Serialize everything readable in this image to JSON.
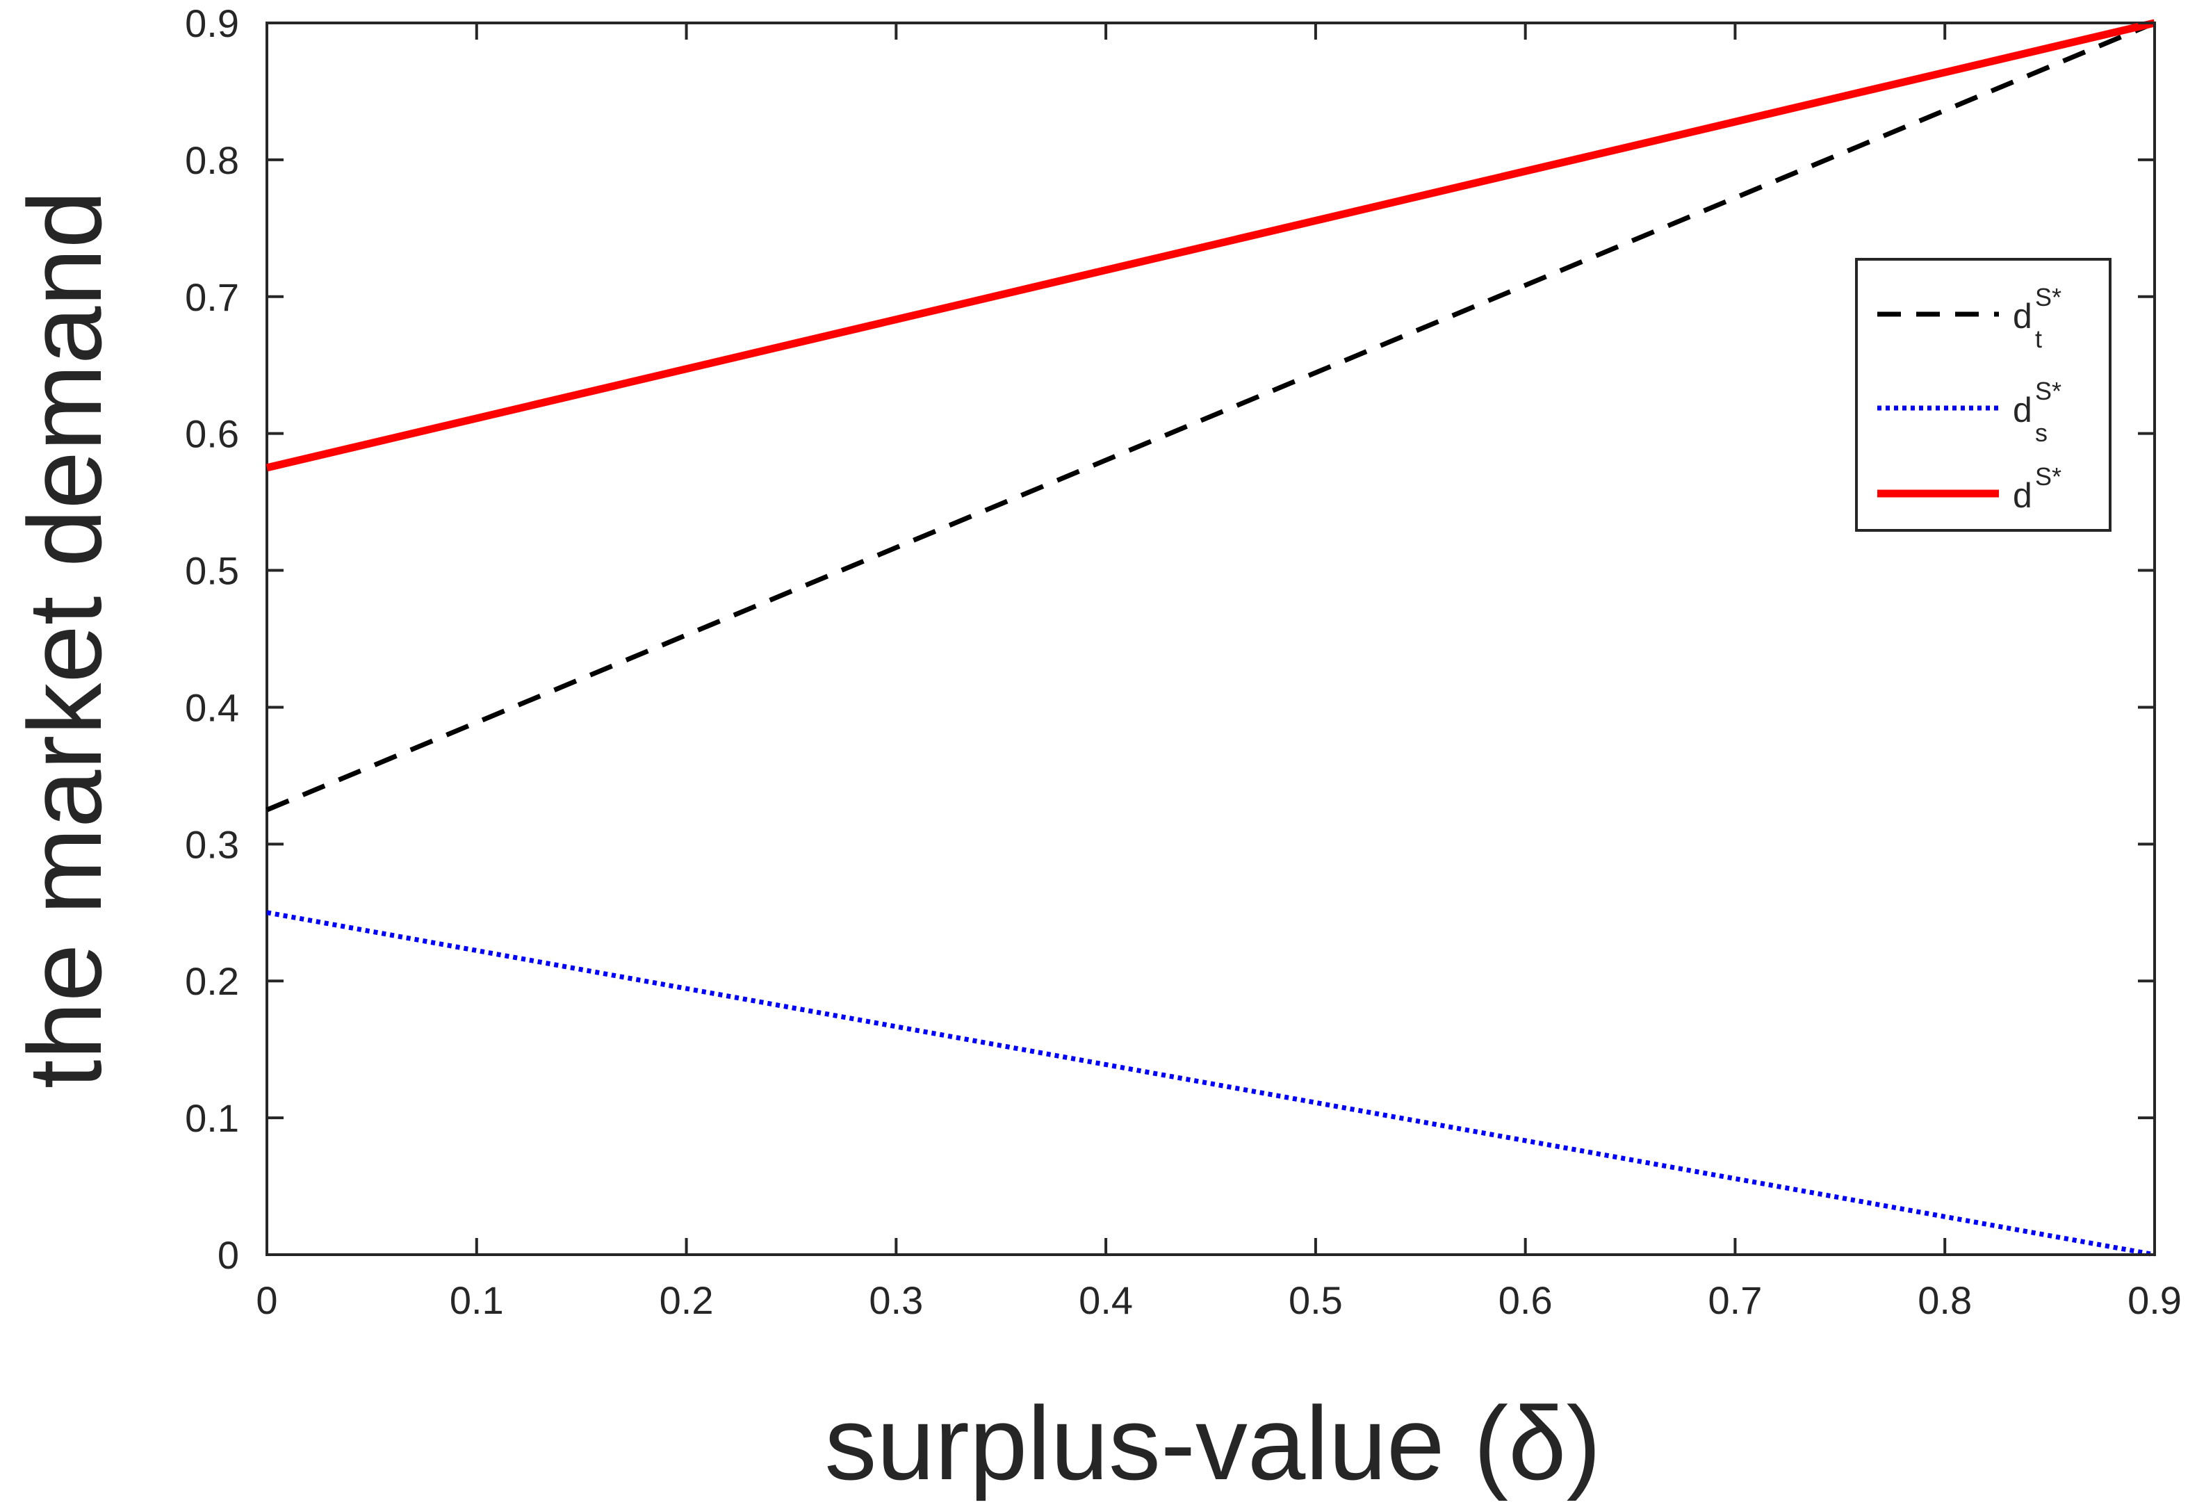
{
  "chart_data": {
    "type": "line",
    "xlabel": "surplus-value (δ)",
    "ylabel": "the market demand",
    "xlim": [
      0,
      0.9
    ],
    "ylim": [
      0,
      0.9
    ],
    "xticks": [
      "0",
      "0.1",
      "0.2",
      "0.3",
      "0.4",
      "0.5",
      "0.6",
      "0.7",
      "0.8",
      "0.9"
    ],
    "yticks": [
      "0",
      "0.1",
      "0.2",
      "0.3",
      "0.4",
      "0.5",
      "0.6",
      "0.7",
      "0.8",
      "0.9"
    ],
    "grid": false,
    "legend_position": "right",
    "series": [
      {
        "name": "d_t^{S*}",
        "label_base": "d",
        "label_sub": "t",
        "label_sup": "S*",
        "color": "#000000",
        "style": "dashed",
        "x": [
          0,
          0.9
        ],
        "y": [
          0.325,
          0.9
        ]
      },
      {
        "name": "d_s^{S*}",
        "label_base": "d",
        "label_sub": "s",
        "label_sup": "S*",
        "color": "#0000ff",
        "style": "dotted",
        "x": [
          0,
          0.9
        ],
        "y": [
          0.25,
          0
        ]
      },
      {
        "name": "d^{S*}",
        "label_base": "d",
        "label_sub": "",
        "label_sup": "S*",
        "color": "#ff0000",
        "style": "solid",
        "x": [
          0,
          0.9
        ],
        "y": [
          0.575,
          0.9
        ]
      }
    ]
  }
}
